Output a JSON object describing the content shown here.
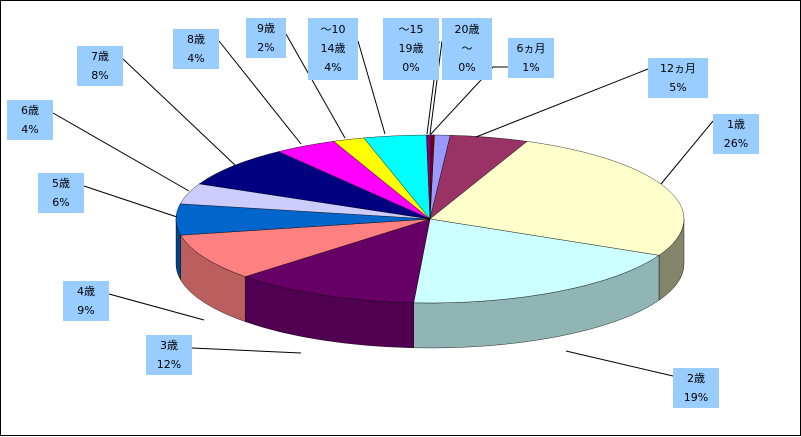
{
  "chart_data": {
    "type": "pie",
    "title": "",
    "legend": "none",
    "slices": [
      {
        "label": "6ヵ月",
        "percent_label": "1%",
        "value": 1,
        "color": "#9999ff"
      },
      {
        "label": "12ヵ月",
        "percent_label": "5%",
        "value": 5,
        "color": "#993366"
      },
      {
        "label": "1歳",
        "percent_label": "26%",
        "value": 26,
        "color": "#ffffcc"
      },
      {
        "label": "2歳",
        "percent_label": "19%",
        "value": 19,
        "color": "#ccffff"
      },
      {
        "label": "3歳",
        "percent_label": "12%",
        "value": 12,
        "color": "#660066"
      },
      {
        "label": "4歳",
        "percent_label": "9%",
        "value": 9,
        "color": "#ff8080"
      },
      {
        "label": "5歳",
        "percent_label": "6%",
        "value": 6,
        "color": "#0066cc"
      },
      {
        "label": "6歳",
        "percent_label": "4%",
        "value": 4,
        "color": "#ccccff"
      },
      {
        "label": "7歳",
        "percent_label": "8%",
        "value": 8,
        "color": "#000080"
      },
      {
        "label": "8歳",
        "percent_label": "4%",
        "value": 4,
        "color": "#ff00ff"
      },
      {
        "label": "9歳",
        "percent_label": "2%",
        "value": 2,
        "color": "#ffff00"
      },
      {
        "label": "～10\n14歳",
        "percent_label": "4%",
        "value": 4,
        "color": "#00ffff"
      },
      {
        "label": "～15\n19歳",
        "percent_label": "0%",
        "value": 0.3,
        "color": "#800080"
      },
      {
        "label": "20歳\n～",
        "percent_label": "0%",
        "value": 0.2,
        "color": "#800000"
      }
    ]
  }
}
